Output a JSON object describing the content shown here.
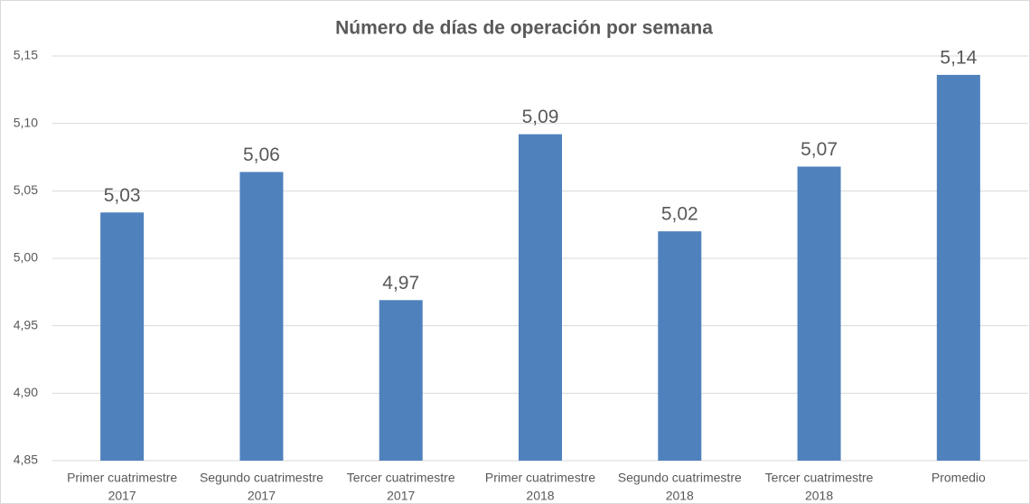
{
  "chart_data": {
    "type": "bar",
    "title": "Número de días de operación por semana",
    "categories": [
      [
        "Primer cuatrimestre",
        "2017"
      ],
      [
        "Segundo cuatrimestre",
        "2017"
      ],
      [
        "Tercer cuatrimestre",
        "2017"
      ],
      [
        "Primer cuatrimestre",
        "2018"
      ],
      [
        "Segundo cuatrimestre",
        "2018"
      ],
      [
        "Tercer cuatrimestre",
        "2018"
      ],
      [
        "Promedio"
      ]
    ],
    "values": [
      5.034,
      5.064,
      4.969,
      5.092,
      5.02,
      5.068,
      5.136
    ],
    "value_labels": [
      "5,03",
      "5,06",
      "4,97",
      "5,09",
      "5,02",
      "5,07",
      "5,14"
    ],
    "color": "#4f81bd",
    "ylim": [
      4.85,
      5.15
    ],
    "yticks": [
      {
        "value": 4.85,
        "label": "4,85"
      },
      {
        "value": 4.9,
        "label": "4,90"
      },
      {
        "value": 4.95,
        "label": "4,95"
      },
      {
        "value": 5.0,
        "label": "5,00"
      },
      {
        "value": 5.05,
        "label": "5,05"
      },
      {
        "value": 5.1,
        "label": "5,10"
      },
      {
        "value": 5.15,
        "label": "5,15"
      }
    ],
    "grid": true
  }
}
